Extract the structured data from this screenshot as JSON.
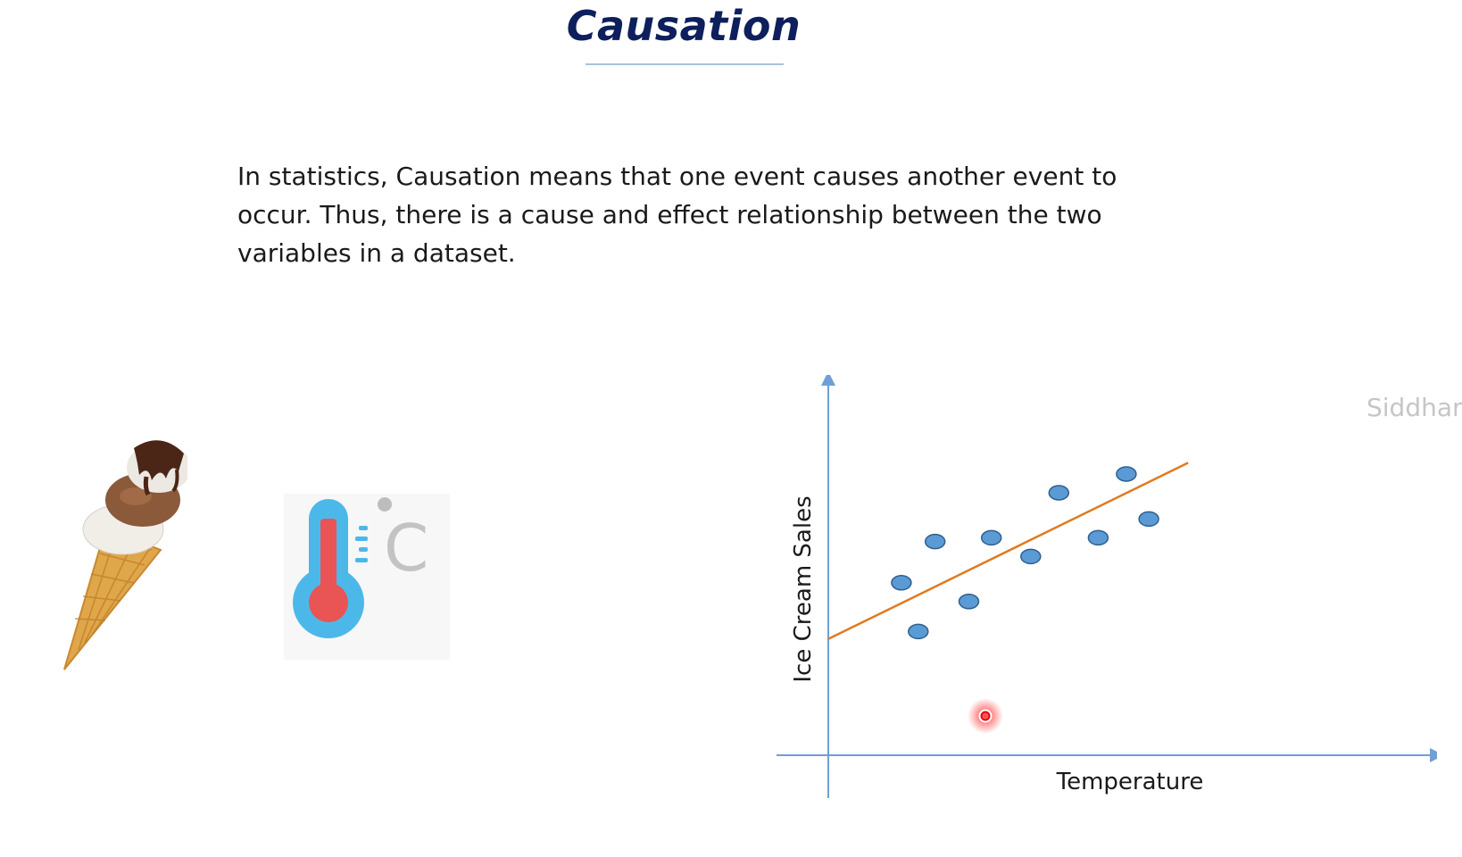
{
  "slide": {
    "title": "Causation",
    "body": "In statistics, Causation means that one event causes another event to occur. Thus, there is a cause and effect relationship between the two variables in a dataset.",
    "watermark": "Siddhar"
  },
  "images": {
    "ice_cream": "ice-cream-cone-icon",
    "thermometer": "thermometer-celsius-icon",
    "thermometer_unit": "C"
  },
  "chart_data": {
    "type": "scatter",
    "xlabel": "Temperature",
    "ylabel": "Ice Cream Sales",
    "grid": false,
    "legend": "none",
    "xlim": [
      0,
      100
    ],
    "ylim": [
      0,
      100
    ],
    "points": [
      {
        "x": 13,
        "y": 46
      },
      {
        "x": 16,
        "y": 33
      },
      {
        "x": 19,
        "y": 57
      },
      {
        "x": 25,
        "y": 41
      },
      {
        "x": 29,
        "y": 58
      },
      {
        "x": 36,
        "y": 53
      },
      {
        "x": 41,
        "y": 70
      },
      {
        "x": 48,
        "y": 58
      },
      {
        "x": 53,
        "y": 75
      },
      {
        "x": 57,
        "y": 63
      }
    ],
    "trendline": {
      "x": [
        0,
        64
      ],
      "y": [
        31,
        78
      ],
      "color": "#e07a1f"
    },
    "colors": {
      "point_fill": "#5b9bd5",
      "point_stroke": "#2f5f8f",
      "axis": "#6f9fd4"
    }
  },
  "cursor": {
    "color": "#e8000e"
  }
}
